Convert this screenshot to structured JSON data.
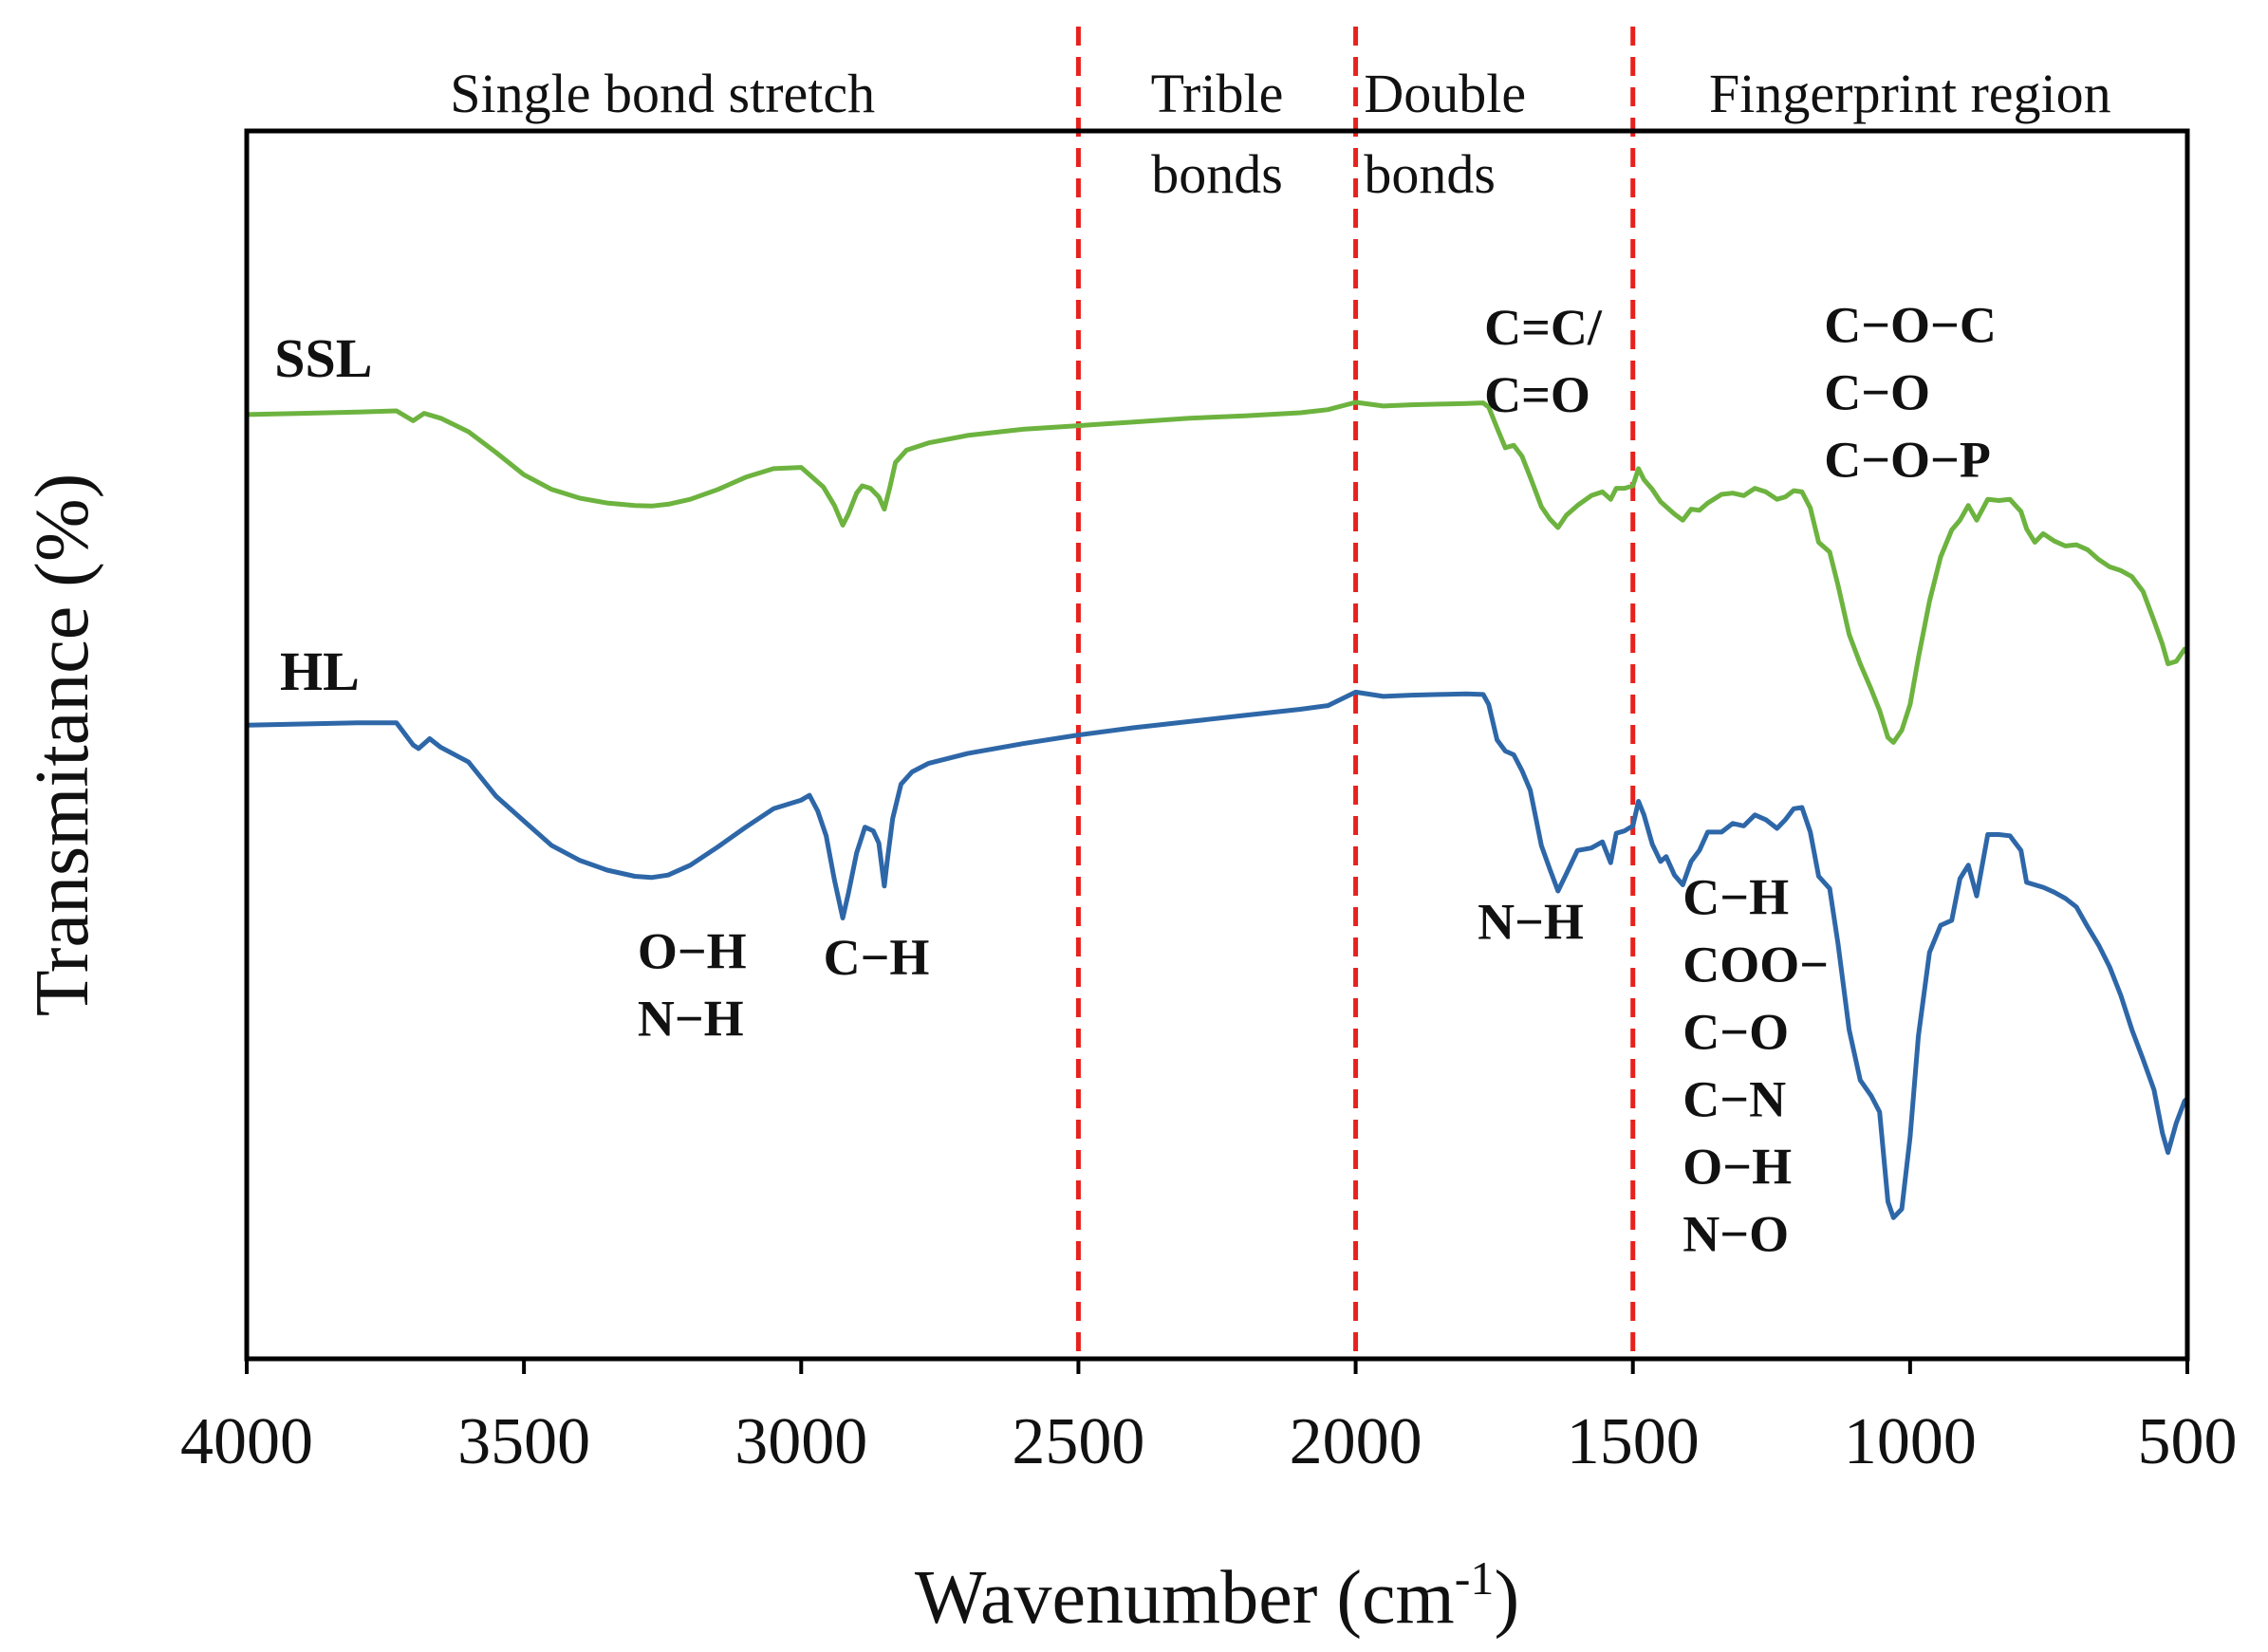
{
  "chart_data": {
    "type": "line",
    "title": "",
    "xlabel": "Wavenumber (cm",
    "xlabel_sup": "-1",
    "xlabel_close": ")",
    "ylabel": "Transmitance (%)",
    "xlim": [
      4000,
      500
    ],
    "x_reversed": true,
    "ylim": [
      0,
      100
    ],
    "y_ticks_shown": false,
    "x_ticks": [
      4000,
      3500,
      3000,
      2500,
      2000,
      1500,
      1000,
      500
    ],
    "divider_lines": [
      2500,
      2000,
      1500
    ],
    "divider_color": "#e8211d",
    "regions": [
      {
        "lines": [
          "Single bond stretch"
        ],
        "x_center": 3250
      },
      {
        "lines": [
          "Trible",
          "bonds"
        ],
        "x_center": 2250
      },
      {
        "lines": [
          "Double",
          "bonds"
        ],
        "x_start": 1985
      },
      {
        "lines": [
          "Fingerprint region"
        ],
        "x_center": 1000
      }
    ],
    "series": [
      {
        "name": "SSL",
        "color": "#6db33f",
        "points": [
          [
            4000,
            76.9
          ],
          [
            3900,
            77
          ],
          [
            3800,
            77.1
          ],
          [
            3730,
            77.2
          ],
          [
            3700,
            76.4
          ],
          [
            3680,
            77
          ],
          [
            3650,
            76.6
          ],
          [
            3600,
            75.5
          ],
          [
            3550,
            73.8
          ],
          [
            3500,
            72
          ],
          [
            3450,
            70.8
          ],
          [
            3400,
            70.1
          ],
          [
            3350,
            69.7
          ],
          [
            3300,
            69.5
          ],
          [
            3270,
            69.45
          ],
          [
            3240,
            69.6
          ],
          [
            3200,
            70
          ],
          [
            3150,
            70.8
          ],
          [
            3100,
            71.8
          ],
          [
            3050,
            72.5
          ],
          [
            3000,
            72.6
          ],
          [
            2980,
            71.8
          ],
          [
            2960,
            71
          ],
          [
            2940,
            69.5
          ],
          [
            2925,
            67.9
          ],
          [
            2915,
            68.8
          ],
          [
            2900,
            70.5
          ],
          [
            2890,
            71.1
          ],
          [
            2875,
            70.9
          ],
          [
            2860,
            70.2
          ],
          [
            2850,
            69.2
          ],
          [
            2840,
            71
          ],
          [
            2830,
            73
          ],
          [
            2810,
            74
          ],
          [
            2770,
            74.6
          ],
          [
            2700,
            75.2
          ],
          [
            2600,
            75.7
          ],
          [
            2500,
            76
          ],
          [
            2400,
            76.3
          ],
          [
            2300,
            76.6
          ],
          [
            2200,
            76.8
          ],
          [
            2100,
            77.05
          ],
          [
            2050,
            77.3
          ],
          [
            2000,
            77.9
          ],
          [
            1950,
            77.6
          ],
          [
            1900,
            77.7
          ],
          [
            1850,
            77.75
          ],
          [
            1800,
            77.8
          ],
          [
            1770,
            77.85
          ],
          [
            1760,
            77.5
          ],
          [
            1745,
            75.8
          ],
          [
            1730,
            74.2
          ],
          [
            1715,
            74.4
          ],
          [
            1700,
            73.5
          ],
          [
            1685,
            71.8
          ],
          [
            1665,
            69.4
          ],
          [
            1650,
            68.4
          ],
          [
            1635,
            67.7
          ],
          [
            1620,
            68.7
          ],
          [
            1600,
            69.5
          ],
          [
            1575,
            70.3
          ],
          [
            1555,
            70.6
          ],
          [
            1540,
            70
          ],
          [
            1530,
            70.9
          ],
          [
            1515,
            70.9
          ],
          [
            1500,
            71.1
          ],
          [
            1490,
            72.5
          ],
          [
            1480,
            71.6
          ],
          [
            1465,
            70.8
          ],
          [
            1450,
            69.8
          ],
          [
            1440,
            69.4
          ],
          [
            1425,
            68.8
          ],
          [
            1410,
            68.3
          ],
          [
            1395,
            69.2
          ],
          [
            1380,
            69.1
          ],
          [
            1365,
            69.7
          ],
          [
            1340,
            70.4
          ],
          [
            1320,
            70.5
          ],
          [
            1300,
            70.3
          ],
          [
            1280,
            70.9
          ],
          [
            1260,
            70.6
          ],
          [
            1240,
            70
          ],
          [
            1225,
            70.2
          ],
          [
            1210,
            70.7
          ],
          [
            1195,
            70.6
          ],
          [
            1180,
            69.3
          ],
          [
            1165,
            66.5
          ],
          [
            1145,
            65.7
          ],
          [
            1130,
            63
          ],
          [
            1110,
            59
          ],
          [
            1090,
            56.6
          ],
          [
            1070,
            54.5
          ],
          [
            1055,
            52.8
          ],
          [
            1040,
            50.6
          ],
          [
            1030,
            50.2
          ],
          [
            1015,
            51.2
          ],
          [
            1000,
            53.3
          ],
          [
            985,
            57.1
          ],
          [
            965,
            61.7
          ],
          [
            945,
            65.3
          ],
          [
            925,
            67.5
          ],
          [
            910,
            68.3
          ],
          [
            895,
            69.5
          ],
          [
            880,
            68.3
          ],
          [
            860,
            70
          ],
          [
            840,
            69.9
          ],
          [
            820,
            70
          ],
          [
            800,
            69
          ],
          [
            790,
            67.6
          ],
          [
            775,
            66.5
          ],
          [
            760,
            67.2
          ],
          [
            740,
            66.6
          ],
          [
            720,
            66.2
          ],
          [
            700,
            66.3
          ],
          [
            680,
            65.9
          ],
          [
            660,
            65.1
          ],
          [
            640,
            64.5
          ],
          [
            620,
            64.2
          ],
          [
            600,
            63.7
          ],
          [
            580,
            62.5
          ],
          [
            560,
            60.1
          ],
          [
            545,
            58.2
          ],
          [
            535,
            56.6
          ],
          [
            520,
            56.8
          ],
          [
            505,
            57.8
          ],
          [
            500,
            57.5
          ]
        ]
      },
      {
        "name": "HL",
        "color": "#2e67a8",
        "points": [
          [
            4000,
            51.6
          ],
          [
            3900,
            51.7
          ],
          [
            3800,
            51.8
          ],
          [
            3730,
            51.8
          ],
          [
            3700,
            50
          ],
          [
            3690,
            49.7
          ],
          [
            3670,
            50.5
          ],
          [
            3650,
            49.8
          ],
          [
            3600,
            48.6
          ],
          [
            3550,
            45.8
          ],
          [
            3500,
            43.8
          ],
          [
            3450,
            41.8
          ],
          [
            3400,
            40.6
          ],
          [
            3350,
            39.8
          ],
          [
            3300,
            39.3
          ],
          [
            3270,
            39.2
          ],
          [
            3240,
            39.4
          ],
          [
            3200,
            40.2
          ],
          [
            3150,
            41.7
          ],
          [
            3100,
            43.3
          ],
          [
            3050,
            44.8
          ],
          [
            3000,
            45.5
          ],
          [
            2985,
            45.9
          ],
          [
            2970,
            44.6
          ],
          [
            2955,
            42.6
          ],
          [
            2940,
            39
          ],
          [
            2925,
            35.9
          ],
          [
            2915,
            37.9
          ],
          [
            2900,
            41.2
          ],
          [
            2885,
            43.3
          ],
          [
            2870,
            43
          ],
          [
            2860,
            42
          ],
          [
            2850,
            38.5
          ],
          [
            2845,
            40.5
          ],
          [
            2835,
            44
          ],
          [
            2820,
            46.8
          ],
          [
            2800,
            47.8
          ],
          [
            2770,
            48.5
          ],
          [
            2700,
            49.3
          ],
          [
            2600,
            50.1
          ],
          [
            2500,
            50.8
          ],
          [
            2400,
            51.4
          ],
          [
            2300,
            51.9
          ],
          [
            2200,
            52.4
          ],
          [
            2100,
            52.9
          ],
          [
            2050,
            53.2
          ],
          [
            2000,
            54.3
          ],
          [
            1950,
            53.95
          ],
          [
            1900,
            54.05
          ],
          [
            1850,
            54.1
          ],
          [
            1800,
            54.15
          ],
          [
            1770,
            54.1
          ],
          [
            1760,
            53.3
          ],
          [
            1745,
            50.4
          ],
          [
            1730,
            49.5
          ],
          [
            1715,
            49.2
          ],
          [
            1700,
            47.9
          ],
          [
            1685,
            46.3
          ],
          [
            1665,
            41.8
          ],
          [
            1650,
            39.9
          ],
          [
            1635,
            38.1
          ],
          [
            1620,
            39.5
          ],
          [
            1600,
            41.4
          ],
          [
            1575,
            41.6
          ],
          [
            1555,
            42.1
          ],
          [
            1540,
            40.4
          ],
          [
            1530,
            42.8
          ],
          [
            1515,
            43
          ],
          [
            1500,
            43.4
          ],
          [
            1490,
            45.4
          ],
          [
            1480,
            44.3
          ],
          [
            1465,
            41.9
          ],
          [
            1450,
            40.5
          ],
          [
            1440,
            40.9
          ],
          [
            1425,
            39.4
          ],
          [
            1410,
            38.6
          ],
          [
            1395,
            40.5
          ],
          [
            1380,
            41.4
          ],
          [
            1365,
            42.9
          ],
          [
            1340,
            42.9
          ],
          [
            1320,
            43.6
          ],
          [
            1300,
            43.4
          ],
          [
            1280,
            44.3
          ],
          [
            1260,
            43.9
          ],
          [
            1240,
            43.2
          ],
          [
            1225,
            43.9
          ],
          [
            1210,
            44.8
          ],
          [
            1195,
            44.9
          ],
          [
            1180,
            42.9
          ],
          [
            1165,
            39.3
          ],
          [
            1145,
            38.3
          ],
          [
            1130,
            33.8
          ],
          [
            1110,
            26.8
          ],
          [
            1090,
            22.7
          ],
          [
            1070,
            21.4
          ],
          [
            1055,
            20.1
          ],
          [
            1040,
            12.8
          ],
          [
            1030,
            11.5
          ],
          [
            1015,
            12.2
          ],
          [
            1000,
            18.1
          ],
          [
            985,
            26.3
          ],
          [
            965,
            33.1
          ],
          [
            945,
            35.3
          ],
          [
            925,
            35.7
          ],
          [
            910,
            39.1
          ],
          [
            895,
            40.2
          ],
          [
            880,
            37.7
          ],
          [
            860,
            42.7
          ],
          [
            840,
            42.7
          ],
          [
            820,
            42.6
          ],
          [
            800,
            41.4
          ],
          [
            790,
            38.8
          ],
          [
            775,
            38.6
          ],
          [
            760,
            38.4
          ],
          [
            740,
            38
          ],
          [
            720,
            37.5
          ],
          [
            700,
            36.8
          ],
          [
            680,
            35.2
          ],
          [
            660,
            33.7
          ],
          [
            640,
            31.9
          ],
          [
            620,
            29.6
          ],
          [
            600,
            26.8
          ],
          [
            580,
            24.4
          ],
          [
            560,
            21.9
          ],
          [
            545,
            18.4
          ],
          [
            535,
            16.8
          ],
          [
            520,
            19.2
          ],
          [
            505,
            21
          ],
          [
            500,
            21.2
          ]
        ]
      }
    ],
    "series_labels": [
      {
        "text": "SSL",
        "x": 3950,
        "y": 80
      },
      {
        "text": "HL",
        "x": 3940,
        "y": 54.5
      }
    ],
    "annotations": [
      {
        "lines": [
          "O−H",
          "N−H"
        ],
        "x": 3295,
        "y": 31.8
      },
      {
        "lines": [
          "C−H"
        ],
        "x": 2960,
        "y": 31.3
      },
      {
        "lines": [
          "N−H"
        ],
        "x": 1780,
        "y": 34.2
      },
      {
        "lines": [
          "C=C/",
          "C=O"
        ],
        "x": 1768,
        "y": 82.6
      },
      {
        "lines": [
          "C−O−C",
          "C−O",
          "C−O−P"
        ],
        "x": 1155,
        "y": 82.8
      },
      {
        "lines": [
          "C−H",
          "COO−",
          "C−O",
          "C−N",
          "O−H",
          "N−O"
        ],
        "x": 1410,
        "y": 36.2
      }
    ]
  }
}
